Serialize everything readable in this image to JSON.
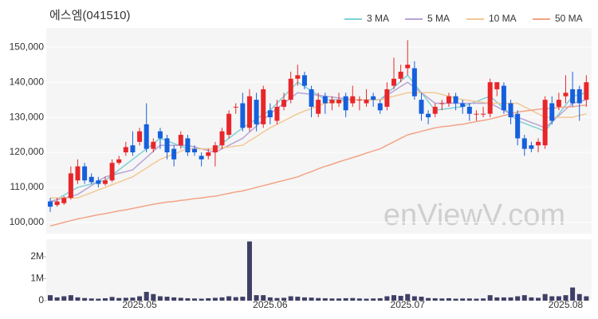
{
  "chart_data": [
    {
      "type": "candlestick",
      "title": "에스엠(041510)",
      "up_color": "#e8262a",
      "down_color": "#1560dd",
      "watermark": "enViewV.com",
      "ylim": [
        96800,
        155500
      ],
      "yticks": [
        {
          "value": 100000,
          "label": "100,000"
        },
        {
          "value": 110000,
          "label": "110,000"
        },
        {
          "value": 120000,
          "label": "120,000"
        },
        {
          "value": 130000,
          "label": "130,000"
        },
        {
          "value": 140000,
          "label": "140,000"
        },
        {
          "value": 150000,
          "label": "150,000"
        }
      ],
      "grid": true,
      "open": [
        106000,
        105000,
        105500,
        107000,
        112000,
        116000,
        113000,
        112000,
        111000,
        112000,
        117000,
        120000,
        122000,
        123000,
        128000,
        121000,
        126000,
        124000,
        121000,
        122000,
        124000,
        121000,
        119000,
        119000,
        120000,
        122000,
        125000,
        133000,
        134000,
        127000,
        135000,
        128000,
        132000,
        129000,
        133000,
        135000,
        141000,
        142000,
        138000,
        131000,
        136000,
        134000,
        134000,
        136000,
        134000,
        135000,
        134000,
        136000,
        134000,
        133000,
        139000,
        141000,
        144000,
        144000,
        135000,
        131000,
        131000,
        134000,
        134000,
        136000,
        134000,
        133000,
        131000,
        131000,
        131000,
        138000,
        139000,
        134000,
        131000,
        124000,
        122000,
        122000,
        122000,
        134000,
        133000,
        136000,
        138000,
        138000,
        135000
      ],
      "high": [
        107000,
        107000,
        107500,
        116000,
        118000,
        117000,
        114000,
        113000,
        113000,
        118000,
        119000,
        123000,
        126000,
        127000,
        134000,
        124000,
        127000,
        125000,
        122000,
        126000,
        125000,
        122000,
        120000,
        121000,
        123000,
        127000,
        132000,
        134000,
        137000,
        138000,
        137000,
        139000,
        134000,
        135000,
        137000,
        143000,
        145000,
        143000,
        139000,
        137000,
        137000,
        136000,
        137000,
        137000,
        139000,
        136000,
        138000,
        137000,
        135000,
        140000,
        147000,
        145000,
        152000,
        146000,
        137000,
        132000,
        134000,
        135000,
        137000,
        137000,
        135000,
        134000,
        132000,
        133000,
        141000,
        140000,
        140000,
        135000,
        132000,
        125000,
        123000,
        124000,
        136000,
        136000,
        137000,
        142000,
        143000,
        139000,
        142000
      ],
      "low": [
        103000,
        104500,
        105000,
        106500,
        111000,
        111000,
        111000,
        110000,
        110500,
        111500,
        116500,
        119000,
        119000,
        122000,
        120000,
        120000,
        121000,
        118000,
        116000,
        121000,
        119000,
        119000,
        116000,
        118000,
        116000,
        121000,
        124000,
        131000,
        126000,
        126000,
        126000,
        127000,
        128000,
        128000,
        132000,
        134000,
        139000,
        138000,
        130000,
        130000,
        131000,
        132000,
        133000,
        130000,
        133000,
        132000,
        133000,
        133000,
        131000,
        132000,
        138000,
        140000,
        142000,
        135000,
        129000,
        128000,
        130000,
        132000,
        133000,
        132000,
        131000,
        129000,
        129000,
        130000,
        130000,
        136000,
        131000,
        128000,
        122000,
        119000,
        120000,
        120000,
        121000,
        128000,
        132000,
        134000,
        133000,
        129000,
        133000
      ],
      "close": [
        104500,
        106000,
        107000,
        114000,
        116000,
        112000,
        111500,
        111000,
        112000,
        117000,
        118000,
        121500,
        120000,
        126000,
        121000,
        123000,
        124000,
        120000,
        118000,
        125000,
        120000,
        120000,
        118000,
        120000,
        122000,
        126000,
        131000,
        133000,
        127000,
        136000,
        128000,
        138000,
        130000,
        133000,
        135000,
        141000,
        142000,
        139000,
        133000,
        135000,
        134000,
        135000,
        135000,
        132000,
        136000,
        135000,
        135000,
        135000,
        132000,
        138000,
        141000,
        143000,
        145000,
        136000,
        131000,
        130000,
        133000,
        134000,
        136000,
        134000,
        133000,
        131000,
        131000,
        131000,
        140000,
        140000,
        132000,
        130000,
        124000,
        121000,
        121000,
        123000,
        135000,
        129000,
        135000,
        137000,
        134000,
        134000,
        140000
      ],
      "series": [
        {
          "name": "3 MA",
          "color": "#7fd0d6",
          "values": [
            105500,
            106600,
            107800,
            108900,
            110000,
            110500,
            111000,
            111500,
            112000,
            113500,
            115000,
            116500,
            118000,
            119500,
            121000,
            122500,
            124000,
            123300,
            122500,
            121800,
            121000,
            121000,
            121000,
            121000,
            121000,
            122500,
            124000,
            125500,
            127000,
            128300,
            129500,
            130800,
            132000,
            134000,
            136000,
            138000,
            140000,
            138800,
            137500,
            136300,
            135000,
            135000,
            135000,
            135000,
            135000,
            135000,
            135000,
            135000,
            135000,
            136800,
            138500,
            140300,
            142000,
            139500,
            137000,
            134500,
            132000,
            132300,
            132500,
            132800,
            133000,
            133800,
            134500,
            135300,
            136000,
            134300,
            132500,
            130800,
            129000,
            128300,
            127500,
            126800,
            126000,
            128500,
            131000,
            133500,
            136000,
            136500,
            137000
          ]
        },
        {
          "name": "5 MA",
          "color": "#b7a3d6",
          "values": [
            106000,
            106500,
            107000,
            107500,
            108000,
            109300,
            110500,
            111800,
            113000,
            113500,
            114000,
            114500,
            115000,
            116800,
            118500,
            120300,
            122000,
            122000,
            122000,
            122000,
            122000,
            121500,
            121000,
            120500,
            120000,
            121000,
            122000,
            123000,
            124000,
            125800,
            127500,
            129300,
            131000,
            132500,
            134000,
            135500,
            137000,
            136800,
            136500,
            136300,
            136000,
            135800,
            135500,
            135300,
            135000,
            135000,
            135000,
            135000,
            135000,
            136300,
            137500,
            138800,
            140000,
            138500,
            137000,
            135500,
            134000,
            134000,
            134000,
            134000,
            134000,
            134000,
            134000,
            134000,
            134000,
            133000,
            132000,
            131000,
            130000,
            129300,
            128500,
            127800,
            127000,
            128800,
            130500,
            132300,
            134000,
            134500,
            135000
          ]
        },
        {
          "name": "10 MA",
          "color": "#f3c894",
          "values": [
            107000,
            107000,
            107000,
            107000,
            107000,
            107800,
            108500,
            109300,
            110000,
            110800,
            111500,
            112300,
            113000,
            114300,
            115500,
            116800,
            118000,
            118800,
            119500,
            120300,
            121000,
            121000,
            121000,
            121000,
            121000,
            121300,
            121500,
            121800,
            122000,
            123300,
            124500,
            125800,
            127000,
            128000,
            129000,
            130000,
            131000,
            131800,
            132500,
            133300,
            134000,
            134300,
            134500,
            134800,
            135000,
            135000,
            135000,
            135000,
            135000,
            135500,
            136000,
            136500,
            137000,
            137000,
            137000,
            137000,
            137000,
            136500,
            136000,
            135500,
            135000,
            134800,
            134500,
            134300,
            134000,
            134000,
            134000,
            134000,
            134000,
            133000,
            132000,
            131000,
            130000,
            130000,
            130000,
            130000,
            130000,
            130500,
            131000
          ]
        },
        {
          "name": "50 MA",
          "color": "#f3a387",
          "values": [
            99000,
            99500,
            100000,
            100500,
            101000,
            101400,
            101800,
            102200,
            102500,
            102900,
            103300,
            103600,
            104000,
            104400,
            104800,
            105200,
            105500,
            105800,
            106000,
            106300,
            106500,
            106800,
            107000,
            107300,
            107500,
            107900,
            108300,
            108700,
            109000,
            109500,
            110000,
            110500,
            111000,
            111500,
            112000,
            112500,
            113000,
            113800,
            114500,
            115300,
            116000,
            116600,
            117300,
            117900,
            118500,
            119100,
            119800,
            120400,
            121000,
            122000,
            123000,
            124000,
            125000,
            125500,
            126000,
            126500,
            127000,
            127300,
            127500,
            127800,
            128000,
            128400,
            128800,
            129100,
            129500,
            130000,
            130500,
            131000,
            131500,
            131800,
            132000,
            132300,
            132500,
            132600,
            132800,
            132900,
            133000,
            133300,
            133500
          ]
        }
      ]
    },
    {
      "type": "bar",
      "color": "#3f3f66",
      "categories": [
        null,
        null,
        null,
        null,
        null,
        null,
        null,
        null,
        null,
        null,
        null,
        null,
        null,
        "2025.05",
        null,
        null,
        null,
        null,
        null,
        null,
        null,
        null,
        null,
        null,
        null,
        null,
        null,
        null,
        null,
        null,
        null,
        null,
        "2025.06",
        null,
        null,
        null,
        null,
        null,
        null,
        null,
        null,
        null,
        null,
        null,
        null,
        null,
        null,
        null,
        null,
        null,
        null,
        null,
        "2025.07",
        null,
        null,
        null,
        null,
        null,
        null,
        null,
        null,
        null,
        null,
        null,
        null,
        null,
        null,
        null,
        null,
        null,
        null,
        null,
        null,
        null,
        null,
        "2025.08",
        null,
        null,
        null
      ],
      "values": [
        250000,
        150000,
        200000,
        250000,
        150000,
        120000,
        100000,
        90000,
        110000,
        170000,
        120000,
        130000,
        140000,
        200000,
        400000,
        300000,
        200000,
        180000,
        150000,
        130000,
        110000,
        100000,
        90000,
        110000,
        130000,
        150000,
        200000,
        160000,
        180000,
        2700000,
        250000,
        250000,
        150000,
        120000,
        130000,
        200000,
        180000,
        150000,
        140000,
        120000,
        110000,
        100000,
        100000,
        110000,
        120000,
        100000,
        90000,
        100000,
        110000,
        200000,
        250000,
        220000,
        300000,
        200000,
        180000,
        120000,
        110000,
        100000,
        110000,
        90000,
        100000,
        100000,
        90000,
        100000,
        250000,
        150000,
        150000,
        150000,
        200000,
        250000,
        150000,
        130000,
        300000,
        200000,
        200000,
        250000,
        600000,
        300000,
        200000
      ],
      "ylim": [
        0,
        2800000
      ],
      "yticks": [
        0,
        {
          "value": 1000000,
          "label": "1M"
        },
        {
          "value": 2000000,
          "label": "2M"
        }
      ]
    }
  ]
}
